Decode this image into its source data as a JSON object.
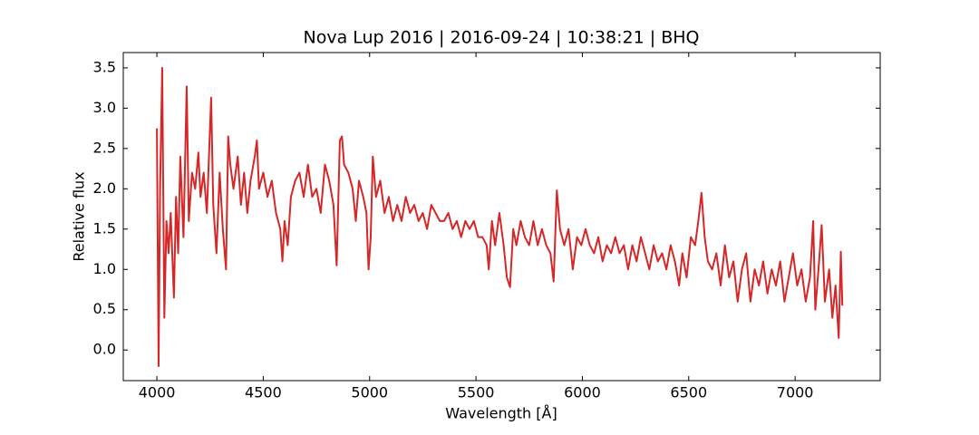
{
  "chart_data": {
    "type": "line",
    "title": "Nova Lup 2016 | 2016-09-24 | 10:38:21 | BHQ",
    "xlabel": "Wavelength [Å]",
    "ylabel": "Relative flux",
    "xlim": [
      3842,
      7400
    ],
    "ylim": [
      -0.38,
      3.69
    ],
    "xticks": [
      4000,
      4500,
      5000,
      5500,
      6000,
      6500,
      7000
    ],
    "yticks": [
      {
        "value": 0,
        "label": "0.0"
      },
      0.5,
      {
        "value": 1,
        "label": "1.0"
      },
      1.5,
      {
        "value": 2,
        "label": "2.0"
      },
      2.5,
      {
        "value": 3,
        "label": "3.0"
      },
      3.5
    ],
    "grid": false,
    "x": [
      4000,
      4008,
      4015,
      4025,
      4035,
      4045,
      4055,
      4065,
      4080,
      4090,
      4100,
      4110,
      4125,
      4140,
      4150,
      4165,
      4180,
      4195,
      4205,
      4220,
      4235,
      4255,
      4265,
      4280,
      4295,
      4310,
      4325,
      4335,
      4345,
      4360,
      4380,
      4395,
      4410,
      4425,
      4440,
      4460,
      4470,
      4480,
      4500,
      4520,
      4540,
      4560,
      4580,
      4590,
      4600,
      4615,
      4630,
      4650,
      4670,
      4690,
      4710,
      4730,
      4750,
      4770,
      4790,
      4810,
      4830,
      4845,
      4860,
      4870,
      4880,
      4900,
      4920,
      4935,
      4950,
      4970,
      4985,
      4995,
      5005,
      5015,
      5030,
      5050,
      5070,
      5090,
      5110,
      5130,
      5150,
      5170,
      5190,
      5210,
      5230,
      5250,
      5270,
      5290,
      5310,
      5330,
      5350,
      5370,
      5390,
      5410,
      5430,
      5450,
      5470,
      5490,
      5510,
      5530,
      5550,
      5560,
      5575,
      5590,
      5610,
      5630,
      5645,
      5660,
      5675,
      5690,
      5710,
      5730,
      5750,
      5770,
      5790,
      5810,
      5830,
      5850,
      5865,
      5880,
      5895,
      5915,
      5935,
      5955,
      5975,
      5995,
      6015,
      6035,
      6055,
      6075,
      6095,
      6115,
      6135,
      6155,
      6175,
      6195,
      6215,
      6235,
      6255,
      6275,
      6295,
      6315,
      6335,
      6355,
      6375,
      6395,
      6415,
      6435,
      6455,
      6470,
      6490,
      6510,
      6530,
      6545,
      6560,
      6575,
      6590,
      6610,
      6630,
      6650,
      6670,
      6690,
      6710,
      6730,
      6750,
      6770,
      6790,
      6810,
      6830,
      6850,
      6870,
      6890,
      6910,
      6930,
      6950,
      6970,
      6990,
      7010,
      7030,
      7050,
      7070,
      7085,
      7095,
      7110,
      7125,
      7140,
      7160,
      7175,
      7190,
      7205,
      7215,
      7222
    ],
    "series": [
      {
        "color": "#d62728",
        "values": [
          2.75,
          -0.2,
          2.0,
          3.5,
          0.4,
          1.6,
          1.2,
          1.7,
          0.65,
          1.9,
          1.2,
          2.4,
          1.4,
          3.27,
          1.6,
          2.2,
          2.0,
          2.45,
          1.9,
          2.2,
          1.7,
          3.13,
          1.8,
          1.2,
          2.2,
          1.5,
          1.0,
          2.65,
          2.3,
          2.0,
          2.4,
          1.8,
          2.2,
          1.7,
          2.1,
          2.4,
          2.6,
          2.0,
          2.2,
          1.9,
          2.1,
          1.7,
          1.5,
          1.1,
          1.6,
          1.3,
          1.9,
          2.1,
          2.2,
          1.9,
          2.3,
          1.9,
          2.0,
          1.7,
          2.3,
          2.1,
          1.8,
          1.05,
          2.6,
          2.65,
          2.3,
          2.2,
          2.0,
          1.6,
          2.1,
          1.9,
          1.7,
          1.0,
          1.4,
          2.4,
          1.9,
          2.1,
          1.7,
          1.9,
          1.6,
          1.8,
          1.6,
          1.9,
          1.7,
          1.8,
          1.6,
          1.7,
          1.5,
          1.8,
          1.7,
          1.6,
          1.6,
          1.7,
          1.5,
          1.6,
          1.4,
          1.6,
          1.5,
          1.6,
          1.4,
          1.4,
          1.3,
          1.0,
          1.6,
          1.3,
          1.7,
          1.3,
          0.9,
          0.78,
          1.5,
          1.3,
          1.6,
          1.4,
          1.3,
          1.6,
          1.3,
          1.5,
          1.3,
          1.2,
          0.85,
          1.98,
          1.5,
          1.3,
          1.5,
          1.0,
          1.4,
          1.3,
          1.5,
          1.3,
          1.2,
          1.4,
          1.1,
          1.3,
          1.2,
          1.4,
          1.2,
          1.3,
          1.0,
          1.3,
          1.1,
          1.4,
          1.2,
          1.0,
          1.3,
          1.1,
          1.2,
          1.0,
          1.3,
          1.1,
          0.8,
          1.2,
          0.9,
          1.4,
          1.3,
          1.6,
          1.95,
          1.4,
          1.1,
          1.0,
          1.2,
          0.8,
          1.3,
          0.9,
          1.1,
          0.6,
          1.0,
          1.2,
          0.6,
          1.0,
          0.8,
          1.1,
          0.7,
          1.0,
          0.8,
          1.1,
          0.6,
          0.9,
          1.2,
          0.8,
          1.0,
          0.6,
          0.9,
          1.6,
          0.5,
          1.0,
          1.55,
          0.6,
          1.0,
          0.4,
          0.8,
          0.15,
          1.22,
          0.55
        ]
      }
    ]
  }
}
